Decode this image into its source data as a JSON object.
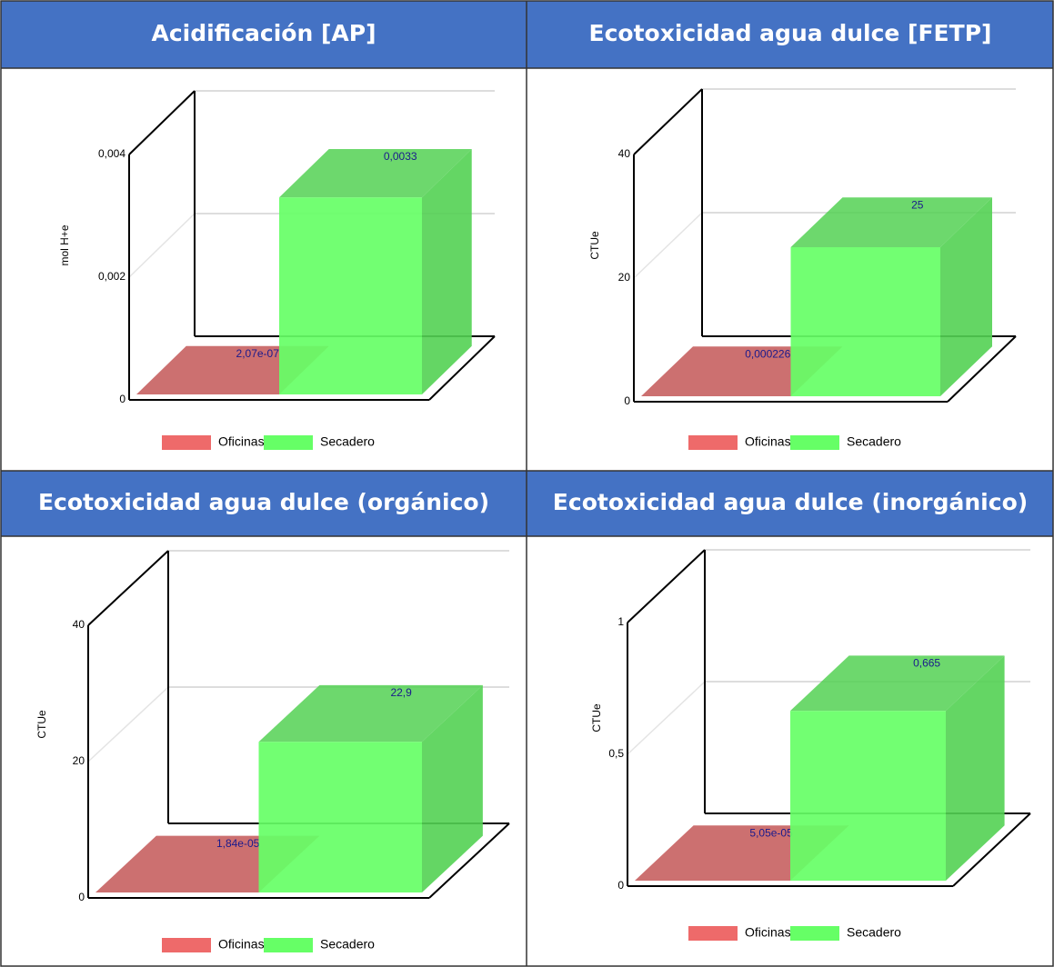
{
  "chart_data": [
    {
      "type": "bar",
      "title": "Acidificación [AP]",
      "y_label": "mol H+e",
      "ylim": [
        0,
        0.004
      ],
      "yticks": [
        0,
        {
          "value": 0.002,
          "label": "0,002"
        },
        {
          "value": 0.004,
          "label": "0,004"
        }
      ],
      "series": [
        {
          "name": "Oficinas",
          "color": "#ee6a6a",
          "values": [
            2.07e-07
          ],
          "value_labels": [
            "2,07e-07"
          ]
        },
        {
          "name": "Secadero",
          "color": "#66ff66",
          "values": [
            0.0033
          ],
          "value_labels": [
            "0,0033"
          ]
        }
      ]
    },
    {
      "type": "bar",
      "title": "Ecotoxicidad agua dulce [FETP]",
      "y_label": "CTUe",
      "ylim": [
        0,
        40
      ],
      "yticks": [
        0,
        20,
        40
      ],
      "series": [
        {
          "name": "Oficinas",
          "color": "#ee6a6a",
          "values": [
            0.000226
          ],
          "value_labels": [
            "0,000226"
          ]
        },
        {
          "name": "Secadero",
          "color": "#66ff66",
          "values": [
            25
          ],
          "value_labels": [
            "25"
          ]
        }
      ]
    },
    {
      "type": "bar",
      "title": "Ecotoxicidad agua dulce (orgánico)",
      "y_label": "CTUe",
      "ylim": [
        0,
        40
      ],
      "yticks": [
        0,
        20,
        40
      ],
      "series": [
        {
          "name": "Oficinas",
          "color": "#ee6a6a",
          "values": [
            1.84e-05
          ],
          "value_labels": [
            "1,84e-05"
          ]
        },
        {
          "name": "Secadero",
          "color": "#66ff66",
          "values": [
            22.9
          ],
          "value_labels": [
            "22,9"
          ]
        }
      ]
    },
    {
      "type": "bar",
      "title": "Ecotoxicidad agua dulce (inorgánico)",
      "y_label": "CTUe",
      "ylim": [
        0,
        1
      ],
      "yticks": [
        0,
        {
          "value": 0.5,
          "label": "0,5"
        },
        1
      ],
      "series": [
        {
          "name": "Oficinas",
          "color": "#ee6a6a",
          "values": [
            5.05e-05
          ],
          "value_labels": [
            "5,05e-05"
          ]
        },
        {
          "name": "Secadero",
          "color": "#66ff66",
          "values": [
            0.665
          ],
          "value_labels": [
            "0,665"
          ]
        }
      ]
    }
  ]
}
